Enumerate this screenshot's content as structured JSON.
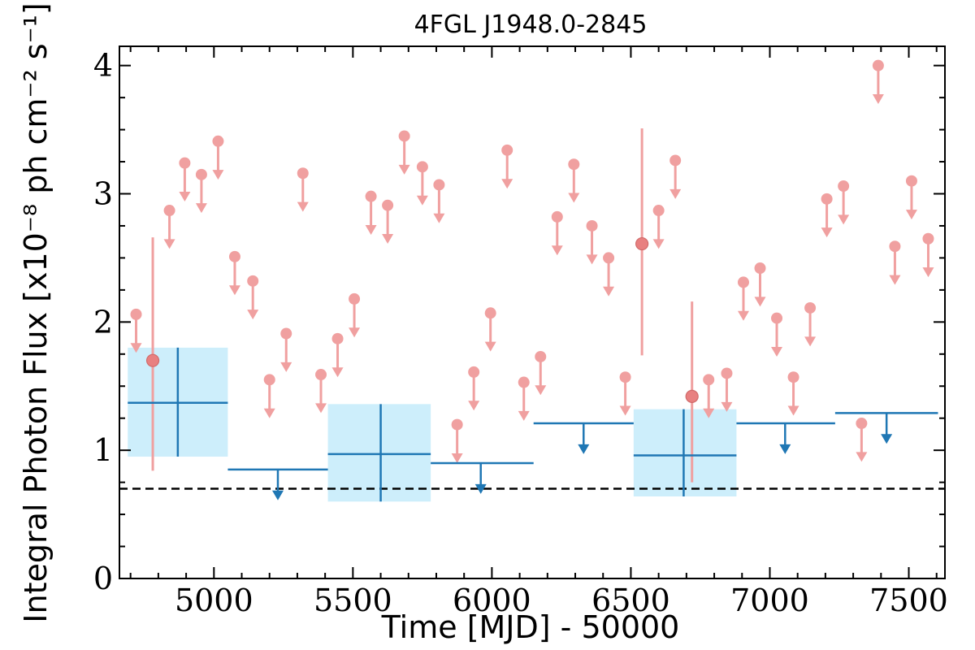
{
  "chart_data": {
    "type": "scatter",
    "title": "4FGL J1948.0-2845",
    "xlabel": "Time [MJD] - 50000",
    "ylabel": "Integral Photon Flux [x10⁻⁸ ph cm⁻² s⁻¹]",
    "xlim": [
      4660,
      7630
    ],
    "ylim": [
      0,
      4.15
    ],
    "xticks": [
      5000,
      5500,
      6000,
      6500,
      7000,
      7500
    ],
    "yticks": [
      0,
      1,
      2,
      3,
      4
    ],
    "reference_line": 0.7,
    "colors": {
      "fine_upper_limit": "#f0a0a0",
      "fine_detection": "#e88080",
      "coarse": "#1f77b4",
      "coarse_box": "#cdeefb",
      "reference": "#000000"
    },
    "fine_upper_limits": [
      {
        "x": 4720,
        "y": 2.06
      },
      {
        "x": 4840,
        "y": 2.87
      },
      {
        "x": 4895,
        "y": 3.24
      },
      {
        "x": 4955,
        "y": 3.15
      },
      {
        "x": 5015,
        "y": 3.41
      },
      {
        "x": 5075,
        "y": 2.51
      },
      {
        "x": 5140,
        "y": 2.32
      },
      {
        "x": 5200,
        "y": 1.55
      },
      {
        "x": 5260,
        "y": 1.91
      },
      {
        "x": 5320,
        "y": 3.16
      },
      {
        "x": 5385,
        "y": 1.59
      },
      {
        "x": 5445,
        "y": 1.87
      },
      {
        "x": 5505,
        "y": 2.18
      },
      {
        "x": 5565,
        "y": 2.98
      },
      {
        "x": 5625,
        "y": 2.91
      },
      {
        "x": 5685,
        "y": 3.45
      },
      {
        "x": 5750,
        "y": 3.21
      },
      {
        "x": 5810,
        "y": 3.07
      },
      {
        "x": 5875,
        "y": 1.2
      },
      {
        "x": 5935,
        "y": 1.61
      },
      {
        "x": 5995,
        "y": 2.07
      },
      {
        "x": 6055,
        "y": 3.34
      },
      {
        "x": 6115,
        "y": 1.53
      },
      {
        "x": 6175,
        "y": 1.73
      },
      {
        "x": 6235,
        "y": 2.82
      },
      {
        "x": 6295,
        "y": 3.23
      },
      {
        "x": 6360,
        "y": 2.75
      },
      {
        "x": 6420,
        "y": 2.5
      },
      {
        "x": 6480,
        "y": 1.57
      },
      {
        "x": 6600,
        "y": 2.87
      },
      {
        "x": 6660,
        "y": 3.26
      },
      {
        "x": 6780,
        "y": 1.55
      },
      {
        "x": 6845,
        "y": 1.6
      },
      {
        "x": 6905,
        "y": 2.31
      },
      {
        "x": 6965,
        "y": 2.42
      },
      {
        "x": 7025,
        "y": 2.03
      },
      {
        "x": 7085,
        "y": 1.57
      },
      {
        "x": 7145,
        "y": 2.11
      },
      {
        "x": 7205,
        "y": 2.96
      },
      {
        "x": 7265,
        "y": 3.06
      },
      {
        "x": 7330,
        "y": 1.21
      },
      {
        "x": 7390,
        "y": 4.0
      },
      {
        "x": 7450,
        "y": 2.59
      },
      {
        "x": 7510,
        "y": 3.1
      },
      {
        "x": 7570,
        "y": 2.65
      }
    ],
    "fine_detections": [
      {
        "x": 4780,
        "y": 1.7,
        "ylo": 0.84,
        "yhi": 2.66
      },
      {
        "x": 6540,
        "y": 2.61,
        "ylo": 1.74,
        "yhi": 3.51
      },
      {
        "x": 6720,
        "y": 1.42,
        "ylo": 0.75,
        "yhi": 2.16
      }
    ],
    "coarse_detections": [
      {
        "x": 4870,
        "x0": 4690,
        "x1": 5050,
        "y": 1.37,
        "ylo": 0.95,
        "yhi": 1.8
      },
      {
        "x": 5600,
        "x0": 5410,
        "x1": 5780,
        "y": 0.97,
        "ylo": 0.6,
        "yhi": 1.36
      },
      {
        "x": 6690,
        "x0": 6510,
        "x1": 6880,
        "y": 0.96,
        "ylo": 0.64,
        "yhi": 1.32
      }
    ],
    "coarse_upper_limits": [
      {
        "x": 5230,
        "x0": 5050,
        "x1": 5410,
        "y": 0.85
      },
      {
        "x": 5960,
        "x0": 5780,
        "x1": 6150,
        "y": 0.9
      },
      {
        "x": 6330,
        "x0": 6150,
        "x1": 6510,
        "y": 1.21
      },
      {
        "x": 7055,
        "x0": 6880,
        "x1": 7235,
        "y": 1.21
      },
      {
        "x": 7420,
        "x0": 7235,
        "x1": 7605,
        "y": 1.29
      }
    ]
  }
}
